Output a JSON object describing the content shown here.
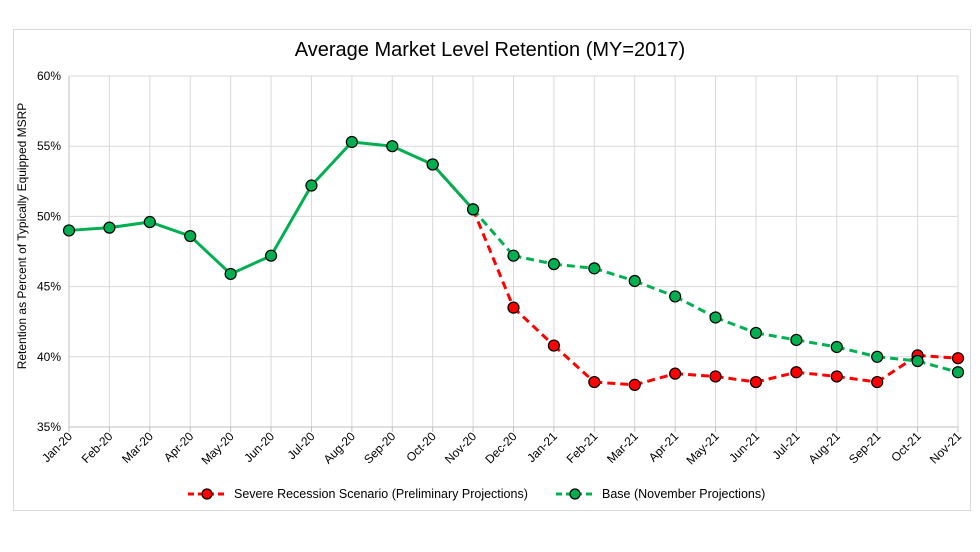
{
  "chart_data": {
    "type": "line",
    "title": "Average Market Level Retention (MY=2017)",
    "xlabel": "",
    "ylabel": "Retention as Percent of Typically Equipped MSRP",
    "ylim": [
      35,
      60
    ],
    "yticks": [
      35,
      40,
      45,
      50,
      55,
      60
    ],
    "ytick_labels": [
      "35%",
      "40%",
      "45%",
      "50%",
      "55%",
      "60%"
    ],
    "grid": true,
    "legend_position": "bottom",
    "categories": [
      "Jan-20",
      "Feb-20",
      "Mar-20",
      "Apr-20",
      "May-20",
      "Jun-20",
      "Jul-20",
      "Aug-20",
      "Sep-20",
      "Oct-20",
      "Nov-20",
      "Dec-20",
      "Jan-21",
      "Feb-21",
      "Mar-21",
      "Apr-21",
      "May-21",
      "Jun-21",
      "Jul-21",
      "Aug-21",
      "Sep-21",
      "Oct-21",
      "Nov-21"
    ],
    "series": [
      {
        "name": "Severe Recession Scenario (Preliminary Projections)",
        "color": "#ff0000",
        "dashed_from_index": 9,
        "values": [
          null,
          null,
          null,
          null,
          null,
          null,
          null,
          null,
          null,
          53.7,
          50.5,
          43.5,
          40.8,
          38.2,
          38.0,
          38.8,
          38.6,
          38.2,
          38.9,
          38.6,
          38.2,
          40.1,
          39.9
        ]
      },
      {
        "name": "Base (November Projections)",
        "color": "#00b050",
        "dashed_from_index": 10,
        "values": [
          49.0,
          49.2,
          49.6,
          48.6,
          45.9,
          47.2,
          52.2,
          55.3,
          55.0,
          53.7,
          50.5,
          47.2,
          46.6,
          46.3,
          45.4,
          44.3,
          42.8,
          41.7,
          41.2,
          40.7,
          40.0,
          39.7,
          38.9
        ]
      }
    ]
  }
}
